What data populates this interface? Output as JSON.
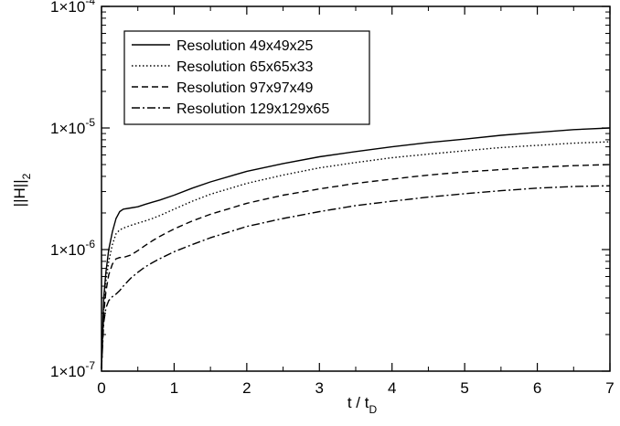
{
  "chart_data": {
    "type": "line",
    "title": "",
    "xlabel": "t / t",
    "xlabel_sub": "D",
    "ylabel": "||H||",
    "ylabel_sub": "2",
    "xlim": [
      0,
      7
    ],
    "ylim": [
      1e-07,
      0.0001
    ],
    "yscale": "log",
    "grid": false,
    "legend_position": "top-left",
    "x_ticks": [
      "0",
      "1",
      "2",
      "3",
      "4",
      "5",
      "6",
      "7"
    ],
    "y_ticks": [
      {
        "mantissa": "1×10",
        "exp": "-7"
      },
      {
        "mantissa": "1×10",
        "exp": "-6"
      },
      {
        "mantissa": "1×10",
        "exp": "-5"
      },
      {
        "mantissa": "1×10",
        "exp": "-4"
      }
    ],
    "series": [
      {
        "name": "Resolution 49x49x25",
        "style": "solid",
        "x": [
          0,
          0.03,
          0.06,
          0.1,
          0.15,
          0.2,
          0.25,
          0.3,
          0.4,
          0.5,
          0.6,
          0.7,
          0.8,
          1.0,
          1.25,
          1.5,
          2.0,
          2.5,
          3.0,
          3.5,
          4.0,
          4.5,
          5.0,
          5.5,
          6.0,
          6.5,
          7.0
        ],
        "y": [
          1.05e-07,
          4e-07,
          6.5e-07,
          1e-06,
          1.4e-06,
          1.8e-06,
          2.05e-06,
          2.15e-06,
          2.2e-06,
          2.25e-06,
          2.35e-06,
          2.45e-06,
          2.55e-06,
          2.8e-06,
          3.2e-06,
          3.6e-06,
          4.4e-06,
          5.1e-06,
          5.8e-06,
          6.4e-06,
          7e-06,
          7.6e-06,
          8.1e-06,
          8.7e-06,
          9.2e-06,
          9.7e-06,
          1e-05
        ]
      },
      {
        "name": "Resolution 65x65x33",
        "style": "dotted",
        "x": [
          0,
          0.03,
          0.06,
          0.1,
          0.15,
          0.2,
          0.25,
          0.3,
          0.4,
          0.5,
          0.6,
          0.7,
          0.8,
          1.0,
          1.25,
          1.5,
          2.0,
          2.5,
          3.0,
          3.5,
          4.0,
          4.5,
          5.0,
          5.5,
          6.0,
          6.5,
          7.0
        ],
        "y": [
          1.05e-07,
          3.5e-07,
          5.5e-07,
          8e-07,
          1.1e-06,
          1.35e-06,
          1.45e-06,
          1.5e-06,
          1.58e-06,
          1.65e-06,
          1.72e-06,
          1.8e-06,
          1.9e-06,
          2.15e-06,
          2.5e-06,
          2.85e-06,
          3.5e-06,
          4.1e-06,
          4.7e-06,
          5.2e-06,
          5.7e-06,
          6.1e-06,
          6.5e-06,
          6.9e-06,
          7.2e-06,
          7.5e-06,
          7.7e-06
        ]
      },
      {
        "name": "Resolution 97x97x49",
        "style": "dashed",
        "x": [
          0,
          0.03,
          0.06,
          0.1,
          0.15,
          0.2,
          0.25,
          0.3,
          0.4,
          0.5,
          0.6,
          0.7,
          0.8,
          1.0,
          1.25,
          1.5,
          2.0,
          2.5,
          3.0,
          3.5,
          4.0,
          4.5,
          5.0,
          5.5,
          6.0,
          6.5,
          7.0
        ],
        "y": [
          1.05e-07,
          3e-07,
          4.5e-07,
          6.2e-07,
          7.6e-07,
          8.4e-07,
          8.6e-07,
          8.6e-07,
          9e-07,
          9.8e-07,
          1.08e-06,
          1.18e-06,
          1.28e-06,
          1.48e-06,
          1.72e-06,
          1.95e-06,
          2.4e-06,
          2.8e-06,
          3.15e-06,
          3.5e-06,
          3.8e-06,
          4.1e-06,
          4.35e-06,
          4.55e-06,
          4.75e-06,
          4.9e-06,
          5e-06
        ]
      },
      {
        "name": "Resolution 129x129x65",
        "style": "dashdot",
        "x": [
          0,
          0.03,
          0.06,
          0.1,
          0.15,
          0.2,
          0.25,
          0.3,
          0.4,
          0.5,
          0.6,
          0.7,
          0.8,
          1.0,
          1.25,
          1.5,
          2.0,
          2.5,
          3.0,
          3.5,
          4.0,
          4.5,
          5.0,
          5.5,
          6.0,
          6.5,
          7.0
        ],
        "y": [
          1.05e-07,
          2.5e-07,
          3.3e-07,
          3.8e-07,
          4.1e-07,
          4.3e-07,
          4.6e-07,
          5e-07,
          5.8e-07,
          6.5e-07,
          7.2e-07,
          7.8e-07,
          8.4e-07,
          9.6e-07,
          1.1e-06,
          1.25e-06,
          1.55e-06,
          1.8e-06,
          2.05e-06,
          2.3e-06,
          2.5e-06,
          2.7e-06,
          2.88e-06,
          3.05e-06,
          3.2e-06,
          3.3e-06,
          3.35e-06
        ]
      }
    ]
  }
}
